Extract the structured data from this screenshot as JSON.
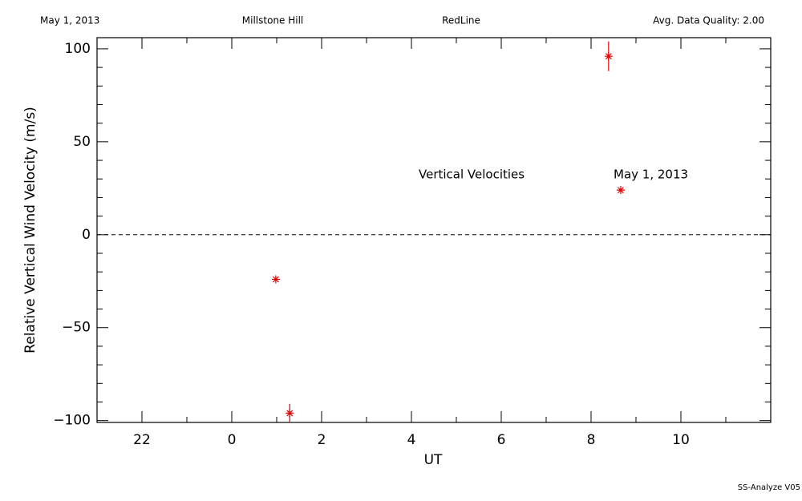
{
  "header": {
    "date": "May 1, 2013",
    "site": "Millstone Hill",
    "filter": "RedLine",
    "quality": "Avg. Data Quality: 2.00"
  },
  "footer": "SS-Analyze V05",
  "chart_data": {
    "type": "scatter",
    "xlabel": "UT",
    "ylabel": "Relative Vertical Wind Velocity (m/s)",
    "annotations": [
      "Vertical Velocities",
      "May 1, 2013"
    ],
    "series": [
      {
        "color": "#e00000",
        "x": [
          0.98,
          1.29,
          8.39,
          8.66
        ],
        "values": [
          -24,
          -96,
          96,
          24
        ],
        "errors": [
          0,
          5,
          8,
          0
        ]
      }
    ],
    "xlim": [
      -3,
      12
    ],
    "ylim": [
      -101,
      106
    ],
    "xticks": [
      {
        "value": -2,
        "label": "22"
      },
      0,
      2,
      4,
      6,
      8,
      10
    ],
    "xminor": [
      -3,
      -1,
      1,
      3,
      5,
      7,
      9,
      11
    ],
    "yticks": [
      {
        "value": -100,
        "label": "−100"
      },
      {
        "value": -50,
        "label": "−50"
      },
      0,
      50,
      100
    ],
    "yminor": [
      -90,
      -80,
      -70,
      -60,
      -40,
      -30,
      -20,
      -10,
      10,
      20,
      30,
      40,
      60,
      70,
      80,
      90
    ],
    "hline": 0
  }
}
